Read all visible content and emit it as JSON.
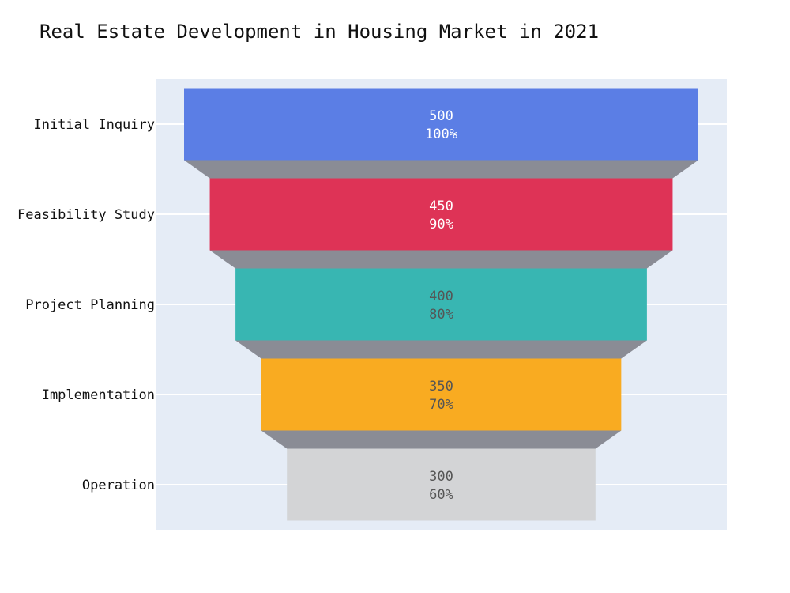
{
  "chart_data": {
    "type": "funnel",
    "title": "Real Estate Development in Housing Market in 2021",
    "categories": [
      "Initial Inquiry",
      "Feasibility Study",
      "Project Planning",
      "Implementation",
      "Operation"
    ],
    "values": [
      500,
      450,
      400,
      350,
      300
    ],
    "percent_labels": [
      "100%",
      "90%",
      "80%",
      "70%",
      "60%"
    ],
    "colors": [
      "#5b7ee5",
      "#de3356",
      "#38b6b2",
      "#f9ab21",
      "#d3d4d6"
    ],
    "label_colors": [
      "#ffffff",
      "#ffffff",
      "#555555",
      "#555555",
      "#555555"
    ],
    "connector_color": "#8a8c95",
    "plot_background": "#e5ecf6",
    "grid": true
  }
}
